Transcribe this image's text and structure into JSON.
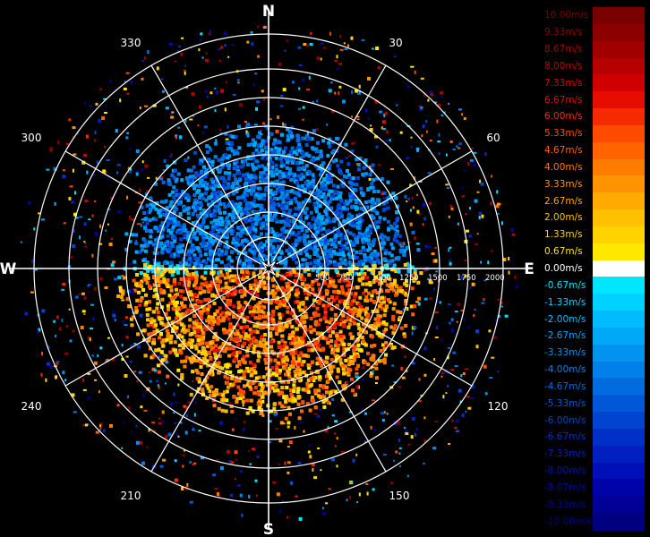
{
  "compass": {
    "north": "N",
    "south": "S",
    "east": "E",
    "west": "W"
  },
  "bearing_labels": [
    "30",
    "60",
    "120",
    "150",
    "210",
    "240",
    "300",
    "330"
  ],
  "range_labels": [
    "500",
    "750",
    "1000",
    "1250",
    "1500",
    "1750",
    "2000"
  ],
  "legend": {
    "items": [
      {
        "label": "10.00m/s",
        "color": "#7a0000"
      },
      {
        "label": "9.33m/s",
        "color": "#8c0000"
      },
      {
        "label": "8.67m/s",
        "color": "#a00000"
      },
      {
        "label": "8.00m/s",
        "color": "#b80000"
      },
      {
        "label": "7.33m/s",
        "color": "#d00000"
      },
      {
        "label": "6.67m/s",
        "color": "#e60c00"
      },
      {
        "label": "6.00m/s",
        "color": "#f52a00"
      },
      {
        "label": "5.33m/s",
        "color": "#ff4a00"
      },
      {
        "label": "4.67m/s",
        "color": "#ff6400"
      },
      {
        "label": "4.00m/s",
        "color": "#ff7c00"
      },
      {
        "label": "3.33m/s",
        "color": "#ff9400"
      },
      {
        "label": "2.67m/s",
        "color": "#ffaa00"
      },
      {
        "label": "2.00m/s",
        "color": "#ffc000"
      },
      {
        "label": "1.33m/s",
        "color": "#ffd200"
      },
      {
        "label": "0.67m/s",
        "color": "#ffe800"
      },
      {
        "label": "0.00m/s",
        "color": "#ffffff"
      },
      {
        "label": "-0.67m/s",
        "color": "#00e6ff"
      },
      {
        "label": "-1.33m/s",
        "color": "#00d2ff"
      },
      {
        "label": "-2.00m/s",
        "color": "#00bcff"
      },
      {
        "label": "-2.67m/s",
        "color": "#00a8f8"
      },
      {
        "label": "-3.33m/s",
        "color": "#0094f0"
      },
      {
        "label": "-4.00m/s",
        "color": "#0080e8"
      },
      {
        "label": "-4.67m/s",
        "color": "#006ce0"
      },
      {
        "label": "-5.33m/s",
        "color": "#0058d8"
      },
      {
        "label": "-6.00m/s",
        "color": "#0044d0"
      },
      {
        "label": "-6.67m/s",
        "color": "#0030c8"
      },
      {
        "label": "-7.33m/s",
        "color": "#0020c0"
      },
      {
        "label": "-8.00m/s",
        "color": "#0010b8"
      },
      {
        "label": "-8.67m/s",
        "color": "#0004a8"
      },
      {
        "label": "-9.33m/s",
        "color": "#000096"
      },
      {
        "label": "-10.00m/s",
        "color": "#000080"
      }
    ]
  },
  "colors": {
    "background": "#000000",
    "grid": "#ffffff"
  }
}
